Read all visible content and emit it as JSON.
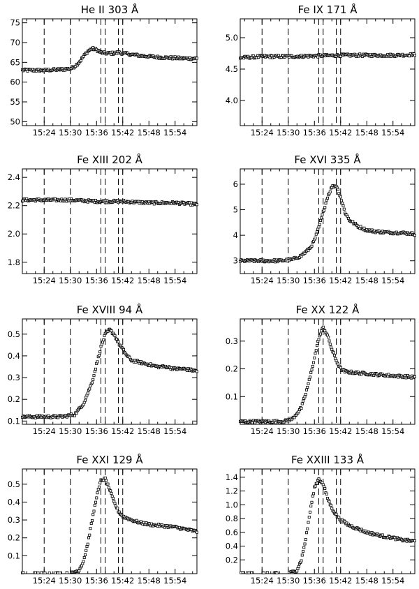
{
  "figure": {
    "x_tick_labels": [
      "15:24",
      "15:30",
      "15:36",
      "15:42",
      "15:48",
      "15:54"
    ],
    "x_range": [
      "15:19",
      "15:59"
    ]
  },
  "chart_data": [
    {
      "type": "scatter",
      "title": "He II  303 Å",
      "xlabel": "",
      "ylabel": "",
      "xlim": [
        "15:19",
        "15:59"
      ],
      "ylim": [
        49,
        76
      ],
      "y_ticks": [
        50,
        55,
        60,
        65,
        70,
        75
      ],
      "y_tick_labels": [
        "50",
        "55",
        "60",
        "65",
        "70",
        "75"
      ],
      "vlines": [
        "15:24",
        "15:30",
        "15:37",
        "15:38",
        "15:41",
        "15:42"
      ],
      "marker": "open-square",
      "grid": false,
      "series": [
        {
          "x": [
            "15:19",
            "15:24",
            "15:28",
            "15:30",
            "15:31",
            "15:32",
            "15:33",
            "15:34",
            "15:35",
            "15:36",
            "15:37",
            "15:38",
            "15:40",
            "15:41",
            "15:42",
            "15:44",
            "15:46",
            "15:48",
            "15:50",
            "15:52",
            "15:54",
            "15:56",
            "15:59"
          ],
          "y": [
            63.0,
            63.0,
            63.2,
            63.4,
            64.0,
            65.0,
            66.5,
            67.8,
            68.5,
            68.2,
            67.5,
            67.3,
            67.3,
            67.5,
            67.3,
            67.0,
            66.7,
            66.5,
            66.3,
            66.2,
            66.1,
            66.0,
            66.0
          ]
        }
      ]
    },
    {
      "type": "scatter",
      "title": "Fe IX  171 Å",
      "xlabel": "",
      "ylabel": "",
      "xlim": [
        "15:19",
        "15:59"
      ],
      "ylim": [
        3.6,
        5.3
      ],
      "y_ticks": [
        4.0,
        4.5,
        5.0
      ],
      "y_tick_labels": [
        "4.0",
        "4.5",
        "5.0"
      ],
      "vlines": [
        "15:24",
        "15:30",
        "15:37",
        "15:38",
        "15:41",
        "15:42"
      ],
      "marker": "open-square",
      "grid": false,
      "series": [
        {
          "x": [
            "15:19",
            "15:24",
            "15:30",
            "15:36",
            "15:42",
            "15:48",
            "15:54",
            "15:59"
          ],
          "y": [
            4.68,
            4.7,
            4.7,
            4.71,
            4.72,
            4.72,
            4.72,
            4.73
          ]
        }
      ]
    },
    {
      "type": "scatter",
      "title": "Fe XIII  202 Å",
      "xlabel": "",
      "ylabel": "",
      "xlim": [
        "15:19",
        "15:59"
      ],
      "ylim": [
        1.72,
        2.46
      ],
      "y_ticks": [
        1.8,
        2.0,
        2.2,
        2.4
      ],
      "y_tick_labels": [
        "1.8",
        "2.0",
        "2.2",
        "2.4"
      ],
      "vlines": [
        "15:24",
        "15:30",
        "15:37",
        "15:38",
        "15:41",
        "15:42"
      ],
      "marker": "open-square",
      "grid": false,
      "series": [
        {
          "x": [
            "15:19",
            "15:24",
            "15:30",
            "15:36",
            "15:42",
            "15:48",
            "15:54",
            "15:59"
          ],
          "y": [
            2.24,
            2.24,
            2.24,
            2.23,
            2.23,
            2.22,
            2.22,
            2.21
          ]
        }
      ]
    },
    {
      "type": "scatter",
      "title": "Fe XVI  335 Å",
      "xlabel": "",
      "ylabel": "",
      "xlim": [
        "15:19",
        "15:59"
      ],
      "ylim": [
        2.5,
        6.6
      ],
      "y_ticks": [
        3,
        4,
        5,
        6
      ],
      "y_tick_labels": [
        "3",
        "4",
        "5",
        "6"
      ],
      "vlines": [
        "15:24",
        "15:30",
        "15:37",
        "15:38",
        "15:41",
        "15:42"
      ],
      "marker": "open-square",
      "grid": false,
      "series": [
        {
          "x": [
            "15:19",
            "15:24",
            "15:28",
            "15:31",
            "15:33",
            "15:35",
            "15:36",
            "15:37",
            "15:38",
            "15:39",
            "15:40",
            "15:41",
            "15:42",
            "15:43",
            "15:44",
            "15:46",
            "15:48",
            "15:50",
            "15:52",
            "15:54",
            "15:56",
            "15:59"
          ],
          "y": [
            3.0,
            3.0,
            3.0,
            3.05,
            3.2,
            3.5,
            3.8,
            4.3,
            4.9,
            5.5,
            5.9,
            5.95,
            5.5,
            4.9,
            4.6,
            4.35,
            4.2,
            4.15,
            4.12,
            4.1,
            4.1,
            4.05
          ]
        }
      ]
    },
    {
      "type": "scatter",
      "title": "Fe XVIII  94 Å",
      "xlabel": "",
      "ylabel": "",
      "xlim": [
        "15:19",
        "15:59"
      ],
      "ylim": [
        0.085,
        0.57
      ],
      "y_ticks": [
        0.1,
        0.2,
        0.3,
        0.4,
        0.5
      ],
      "y_tick_labels": [
        "0.1",
        "0.2",
        "0.3",
        "0.4",
        "0.5"
      ],
      "vlines": [
        "15:24",
        "15:30",
        "15:37",
        "15:38",
        "15:41",
        "15:42"
      ],
      "marker": "open-square",
      "grid": false,
      "series": [
        {
          "x": [
            "15:19",
            "15:24",
            "15:28",
            "15:31",
            "15:33",
            "15:35",
            "15:36",
            "15:37",
            "15:38",
            "15:39",
            "15:40",
            "15:41",
            "15:42",
            "15:43",
            "15:44",
            "15:46",
            "15:48",
            "15:50",
            "15:52",
            "15:54",
            "15:56",
            "15:59"
          ],
          "y": [
            0.12,
            0.12,
            0.12,
            0.13,
            0.18,
            0.28,
            0.36,
            0.44,
            0.5,
            0.52,
            0.5,
            0.46,
            0.43,
            0.4,
            0.38,
            0.37,
            0.36,
            0.35,
            0.35,
            0.34,
            0.34,
            0.33
          ]
        }
      ]
    },
    {
      "type": "scatter",
      "title": "Fe XX  122 Å",
      "xlabel": "",
      "ylabel": "",
      "xlim": [
        "15:19",
        "15:59"
      ],
      "ylim": [
        0.0,
        0.38
      ],
      "y_ticks": [
        0.1,
        0.2,
        0.3
      ],
      "y_tick_labels": [
        "0.1",
        "0.2",
        "0.3"
      ],
      "vlines": [
        "15:24",
        "15:30",
        "15:37",
        "15:38",
        "15:41",
        "15:42"
      ],
      "marker": "open-square",
      "grid": false,
      "series": [
        {
          "x": [
            "15:19",
            "15:24",
            "15:29",
            "15:31",
            "15:33",
            "15:34",
            "15:35",
            "15:36",
            "15:37",
            "15:38",
            "15:39",
            "15:40",
            "15:41",
            "15:42",
            "15:43",
            "15:46",
            "15:50",
            "15:54",
            "15:59"
          ],
          "y": [
            0.01,
            0.01,
            0.01,
            0.02,
            0.06,
            0.11,
            0.17,
            0.24,
            0.31,
            0.35,
            0.32,
            0.27,
            0.23,
            0.2,
            0.19,
            0.185,
            0.18,
            0.175,
            0.17
          ]
        }
      ]
    },
    {
      "type": "scatter",
      "title": "Fe XXI  129 Å",
      "xlabel": "",
      "ylabel": "",
      "xlim": [
        "15:19",
        "15:59"
      ],
      "ylim": [
        0.0,
        0.585
      ],
      "y_ticks": [
        0.1,
        0.2,
        0.3,
        0.4,
        0.5
      ],
      "y_tick_labels": [
        "0.1",
        "0.2",
        "0.3",
        "0.4",
        "0.5"
      ],
      "vlines": [
        "15:24",
        "15:30",
        "15:37",
        "15:38",
        "15:41",
        "15:42"
      ],
      "marker": "open-square",
      "grid": false,
      "series": [
        {
          "x": [
            "15:19",
            "15:24",
            "15:30",
            "15:32",
            "15:33",
            "15:34",
            "15:35",
            "15:36",
            "15:37",
            "15:38",
            "15:39",
            "15:40",
            "15:41",
            "15:42",
            "15:44",
            "15:46",
            "15:48",
            "15:50",
            "15:52",
            "15:54",
            "15:56",
            "15:59"
          ],
          "y": [
            0.0,
            0.0,
            0.0,
            0.02,
            0.07,
            0.17,
            0.3,
            0.43,
            0.52,
            0.53,
            0.47,
            0.4,
            0.35,
            0.32,
            0.3,
            0.285,
            0.275,
            0.27,
            0.265,
            0.26,
            0.25,
            0.235
          ]
        }
      ]
    },
    {
      "type": "scatter",
      "title": "Fe XXIII  133 Å",
      "xlabel": "",
      "ylabel": "",
      "xlim": [
        "15:19",
        "15:59"
      ],
      "ylim": [
        0.0,
        1.52
      ],
      "y_ticks": [
        0.2,
        0.4,
        0.6,
        0.8,
        1.0,
        1.2,
        1.4
      ],
      "y_tick_labels": [
        "0.2",
        "0.4",
        "0.6",
        "0.8",
        "1.0",
        "1.2",
        "1.4"
      ],
      "vlines": [
        "15:24",
        "15:30",
        "15:37",
        "15:38",
        "15:41",
        "15:42"
      ],
      "marker": "open-square",
      "grid": false,
      "series": [
        {
          "x": [
            "15:19",
            "15:24",
            "15:30",
            "15:32",
            "15:33",
            "15:34",
            "15:35",
            "15:36",
            "15:37",
            "15:38",
            "15:39",
            "15:40",
            "15:41",
            "15:42",
            "15:44",
            "15:46",
            "15:48",
            "15:50",
            "15:52",
            "15:54",
            "15:56",
            "15:59"
          ],
          "y": [
            0.0,
            0.0,
            0.0,
            0.05,
            0.2,
            0.5,
            0.9,
            1.25,
            1.38,
            1.3,
            1.1,
            0.95,
            0.85,
            0.78,
            0.7,
            0.65,
            0.6,
            0.57,
            0.54,
            0.52,
            0.49,
            0.47
          ]
        }
      ]
    }
  ]
}
